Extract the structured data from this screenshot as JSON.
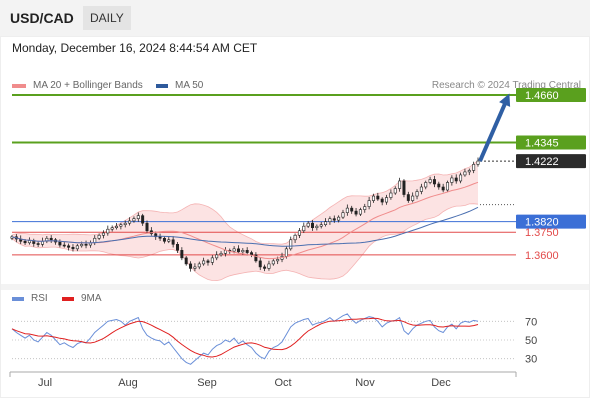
{
  "header": {
    "symbol": "USD/CAD",
    "timeframe": "DAILY"
  },
  "datetime": "Monday, December 16, 2024 8:44:54 AM CET",
  "legend": {
    "ma20": {
      "label": "MA 20 + Bollinger Bands",
      "color": "#f08c8c"
    },
    "ma50": {
      "label": "MA 50",
      "color": "#2e5a9c"
    }
  },
  "credit": "Research © 2024 Trading Central",
  "rsi_legend": {
    "rsi": {
      "label": "RSI",
      "color": "#6a8fd8"
    },
    "ma9": {
      "label": "9MA",
      "color": "#e02020"
    }
  },
  "chart_data": [
    {
      "type": "candlestick",
      "y_range": [
        1.342,
        1.468
      ],
      "x_ticks": [
        "Jul",
        "Aug",
        "Sep",
        "Oct",
        "Nov",
        "Dec"
      ],
      "current_price": 1.4222,
      "levels": [
        {
          "value": 1.466,
          "label": "1.4660",
          "kind": "resistance",
          "color": "#5aa01e"
        },
        {
          "value": 1.4345,
          "label": "1.4345",
          "kind": "resistance",
          "color": "#5aa01e"
        },
        {
          "value": 1.382,
          "label": "1.3820",
          "kind": "pivot",
          "color": "#3b6fd6"
        },
        {
          "value": 1.375,
          "label": "1.3750",
          "kind": "support",
          "color": "#e24a4a"
        },
        {
          "value": 1.36,
          "label": "1.3600",
          "kind": "support",
          "color": "#e24a4a"
        }
      ],
      "closes": [
        1.372,
        1.3705,
        1.369,
        1.368,
        1.3695,
        1.3675,
        1.367,
        1.369,
        1.371,
        1.37,
        1.3685,
        1.3665,
        1.366,
        1.365,
        1.364,
        1.366,
        1.367,
        1.3665,
        1.368,
        1.371,
        1.373,
        1.3745,
        1.377,
        1.378,
        1.379,
        1.38,
        1.381,
        1.3825,
        1.384,
        1.386,
        1.381,
        1.376,
        1.374,
        1.372,
        1.371,
        1.369,
        1.37,
        1.367,
        1.363,
        1.358,
        1.354,
        1.351,
        1.352,
        1.354,
        1.356,
        1.355,
        1.358,
        1.36,
        1.361,
        1.363,
        1.3625,
        1.364,
        1.362,
        1.363,
        1.3615,
        1.36,
        1.356,
        1.352,
        1.351,
        1.354,
        1.356,
        1.357,
        1.359,
        1.364,
        1.37,
        1.373,
        1.376,
        1.379,
        1.381,
        1.378,
        1.379,
        1.38,
        1.382,
        1.384,
        1.383,
        1.385,
        1.388,
        1.391,
        1.389,
        1.387,
        1.39,
        1.392,
        1.396,
        1.399,
        1.397,
        1.395,
        1.398,
        1.401,
        1.404,
        1.409,
        1.4,
        1.396,
        1.399,
        1.402,
        1.405,
        1.408,
        1.41,
        1.407,
        1.405,
        1.403,
        1.408,
        1.411,
        1.409,
        1.413,
        1.415,
        1.416,
        1.42,
        1.4222
      ]
    },
    {
      "type": "line",
      "title": "RSI",
      "y_range": [
        20,
        80
      ],
      "y_ticks": [
        70,
        50,
        30
      ],
      "rsi": [
        62,
        58,
        55,
        52,
        55,
        50,
        48,
        53,
        58,
        55,
        50,
        45,
        47,
        44,
        42,
        46,
        48,
        47,
        52,
        58,
        62,
        66,
        70,
        71,
        72,
        70,
        66,
        70,
        72,
        74,
        62,
        55,
        52,
        50,
        49,
        45,
        48,
        42,
        36,
        30,
        26,
        24,
        28,
        32,
        36,
        34,
        40,
        44,
        46,
        50,
        48,
        52,
        46,
        49,
        45,
        42,
        36,
        32,
        30,
        38,
        42,
        44,
        48,
        56,
        64,
        68,
        70,
        72,
        73,
        66,
        68,
        69,
        71,
        74,
        70,
        73,
        76,
        78,
        72,
        68,
        71,
        73,
        75,
        74,
        70,
        64,
        68,
        70,
        71,
        74,
        60,
        56,
        62,
        66,
        68,
        70,
        71,
        64,
        60,
        58,
        64,
        67,
        62,
        68,
        70,
        69,
        71,
        70
      ]
    }
  ]
}
